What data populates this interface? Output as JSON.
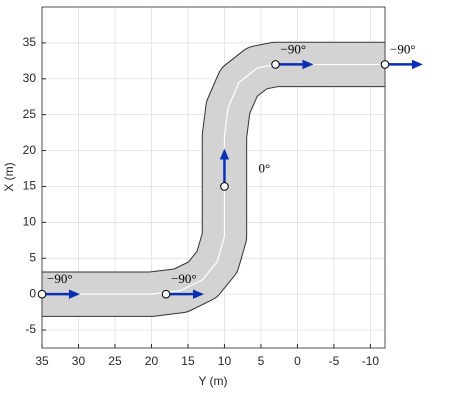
{
  "chart_data": {
    "type": "waypoints",
    "x_label": "Y (m)",
    "y_label": "X (m)",
    "xlim": [
      35,
      -12
    ],
    "ylim": [
      -7.5,
      40
    ],
    "xticks": [
      35,
      30,
      25,
      20,
      15,
      10,
      5,
      0,
      -5,
      -10
    ],
    "yticks": [
      -5,
      0,
      5,
      10,
      15,
      20,
      25,
      30,
      35
    ],
    "grid": true,
    "road": {
      "x": [
        35,
        20,
        16,
        13,
        11,
        10,
        10,
        9.5,
        8,
        5.5,
        3,
        -12
      ],
      "y": [
        0,
        0,
        0.5,
        2,
        4.5,
        8,
        22,
        26,
        29.5,
        31.5,
        32,
        32
      ],
      "width": 6,
      "color": "#d3d3d3"
    },
    "x": [
      35,
      18,
      10,
      3,
      -12
    ],
    "values": [
      0,
      0,
      15,
      32,
      32
    ],
    "headings": [
      {
        "value": -90,
        "label": "−90°"
      },
      {
        "value": -90,
        "label": "−90°"
      },
      {
        "value": 0,
        "label": "0°"
      },
      {
        "value": -90,
        "label": "−90°"
      },
      {
        "value": -90,
        "label": "−90°"
      }
    ],
    "arrow_color": "#0a2fb5"
  }
}
